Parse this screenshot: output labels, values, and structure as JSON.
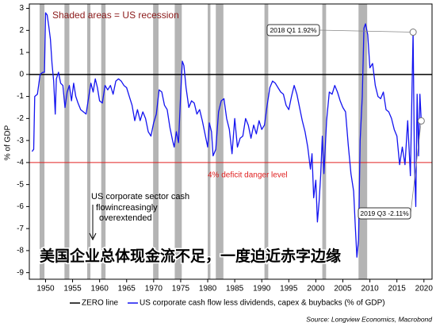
{
  "chart_data": {
    "type": "line",
    "annotation_top": "Shaded areas = US recession",
    "annotation_note": [
      "US corporate sector cash",
      "flowincreasingly",
      "overextended"
    ],
    "headline": "美国企业总体现金流不足，一度迫近赤字边缘",
    "y_label": "% of GDP",
    "source": "Source: Longview Economics, Macrobond",
    "xlim": [
      1947,
      2021.5
    ],
    "ylim": [
      -9.3,
      3.2
    ],
    "xticks": [
      1950,
      1955,
      1960,
      1965,
      1970,
      1975,
      1980,
      1985,
      1990,
      1995,
      2000,
      2005,
      2010,
      2015,
      2020
    ],
    "yticks": [
      3,
      2,
      1,
      0,
      -1,
      -2,
      -3,
      -4,
      -5,
      -6,
      -7,
      -8,
      -9
    ],
    "recessions": [
      [
        1948.9,
        1949.8
      ],
      [
        1953.5,
        1954.4
      ],
      [
        1957.7,
        1958.3
      ],
      [
        1960.3,
        1961.1
      ],
      [
        1969.9,
        1970.9
      ],
      [
        1973.9,
        1975.2
      ],
      [
        1980.0,
        1980.5
      ],
      [
        1981.5,
        1982.9
      ],
      [
        1990.5,
        1991.2
      ],
      [
        2001.2,
        2001.9
      ],
      [
        2007.9,
        2009.5
      ]
    ],
    "recession_color": "#b4b4b4",
    "zero_line": {
      "name": "ZERO line",
      "value": 0,
      "color": "#000000"
    },
    "danger_line": {
      "label": "4% deficit danger level",
      "value": -4,
      "color": "#e02020"
    },
    "callouts": [
      {
        "label": "2018 Q1 1.92%",
        "x": 2018.0,
        "y": 1.92
      },
      {
        "label": "2019 Q3 -2.11%",
        "x": 2019.5,
        "y": -2.11
      }
    ],
    "x": [
      1947.5,
      1947.8,
      1948.0,
      1948.5,
      1949.0,
      1949.5,
      1949.8,
      1950.0,
      1950.3,
      1950.6,
      1950.9,
      1951.2,
      1951.5,
      1951.8,
      1952.0,
      1952.4,
      1952.8,
      1953.2,
      1953.6,
      1954.0,
      1954.4,
      1954.8,
      1955.2,
      1955.6,
      1956.0,
      1956.5,
      1957.0,
      1957.5,
      1958.0,
      1958.4,
      1958.8,
      1959.2,
      1959.6,
      1960.0,
      1960.5,
      1961.0,
      1961.5,
      1962.0,
      1962.5,
      1963.0,
      1963.5,
      1964.0,
      1964.5,
      1965.0,
      1965.5,
      1966.0,
      1966.5,
      1967.0,
      1967.5,
      1968.0,
      1968.5,
      1969.0,
      1969.5,
      1970.0,
      1970.5,
      1971.0,
      1971.5,
      1972.0,
      1972.5,
      1973.0,
      1973.5,
      1973.8,
      1974.2,
      1974.6,
      1975.0,
      1975.3,
      1975.6,
      1976.0,
      1976.5,
      1977.0,
      1977.5,
      1978.0,
      1978.5,
      1979.0,
      1979.5,
      1980.0,
      1980.3,
      1980.7,
      1981.0,
      1981.5,
      1982.0,
      1982.5,
      1983.0,
      1983.5,
      1984.0,
      1984.5,
      1985.0,
      1985.5,
      1986.0,
      1986.5,
      1987.0,
      1987.5,
      1988.0,
      1988.5,
      1989.0,
      1989.5,
      1990.0,
      1990.5,
      1991.0,
      1991.5,
      1992.0,
      1992.5,
      1993.0,
      1993.5,
      1994.0,
      1994.5,
      1995.0,
      1995.5,
      1996.0,
      1996.5,
      1997.0,
      1997.5,
      1998.0,
      1998.5,
      1999.0,
      1999.3,
      1999.6,
      2000.0,
      2000.3,
      2000.6,
      2000.9,
      2001.2,
      2001.5,
      2002.0,
      2002.5,
      2003.0,
      2003.5,
      2004.0,
      2004.5,
      2005.0,
      2005.5,
      2006.0,
      2006.5,
      2007.0,
      2007.3,
      2007.6,
      2007.9,
      2008.2,
      2008.6,
      2008.9,
      2009.2,
      2009.6,
      2010.0,
      2010.5,
      2011.0,
      2011.5,
      2012.0,
      2012.5,
      2013.0,
      2013.5,
      2014.0,
      2014.5,
      2015.0,
      2015.5,
      2016.0,
      2016.5,
      2017.0,
      2017.5,
      2018.0,
      2018.25,
      2018.5,
      2018.75,
      2019.0,
      2019.25,
      2019.5
    ],
    "series": [
      {
        "name": "US corporate cash flow less dividends, capex & buybacks (% of GDP)",
        "color": "#1414f0",
        "values": [
          -3.5,
          -3.4,
          -1.0,
          -0.9,
          0.0,
          0.1,
          0.1,
          2.8,
          2.7,
          2.2,
          1.6,
          0.5,
          -0.3,
          -1.8,
          -0.2,
          0.1,
          -0.4,
          -0.5,
          -1.5,
          -0.8,
          -0.5,
          -1.2,
          -0.4,
          -1.0,
          -1.3,
          -1.6,
          -1.7,
          -1.8,
          -1.0,
          -0.4,
          -0.8,
          -0.2,
          -0.6,
          -1.2,
          -1.3,
          -0.5,
          -0.7,
          -0.5,
          -0.9,
          -0.3,
          -0.2,
          -0.3,
          -0.5,
          -0.6,
          -1.0,
          -1.4,
          -2.1,
          -1.6,
          -2.1,
          -1.7,
          -2.0,
          -2.6,
          -2.8,
          -2.2,
          -1.8,
          -0.7,
          -0.8,
          -1.4,
          -1.6,
          -2.4,
          -3.0,
          -3.3,
          -2.6,
          -3.1,
          -0.9,
          0.6,
          0.4,
          -0.6,
          -1.5,
          -1.2,
          -1.3,
          -1.8,
          -1.6,
          -2.1,
          -2.7,
          -3.3,
          -2.2,
          -2.6,
          -3.7,
          -3.4,
          -1.7,
          -1.2,
          -1.1,
          -2.0,
          -2.5,
          -3.6,
          -2.0,
          -3.3,
          -2.9,
          -2.8,
          -2.0,
          -2.3,
          -2.9,
          -2.3,
          -2.7,
          -2.1,
          -2.5,
          -2.3,
          -1.4,
          -0.6,
          -0.3,
          -0.4,
          -0.6,
          -0.8,
          -0.9,
          -1.4,
          -1.6,
          -1.0,
          -0.5,
          -0.9,
          -1.5,
          -2.1,
          -2.6,
          -3.3,
          -4.3,
          -3.6,
          -5.6,
          -4.8,
          -6.7,
          -5.8,
          -4.6,
          -2.8,
          -4.5,
          -2.1,
          -0.8,
          -0.9,
          -0.5,
          -0.8,
          -1.2,
          -1.5,
          -1.7,
          -3.2,
          -4.5,
          -5.3,
          -6.9,
          -8.3,
          -7.5,
          -3.0,
          -1.0,
          2.1,
          2.3,
          1.8,
          0.3,
          0.5,
          -0.5,
          -1.0,
          -1.1,
          -0.8,
          -1.6,
          -1.7,
          -2.0,
          -2.5,
          -2.8,
          -4.1,
          -3.3,
          -4.1,
          -2.1,
          -4.6,
          1.92,
          -4.0,
          -6.0,
          -0.9,
          -3.7,
          -0.9,
          -2.11
        ]
      }
    ]
  }
}
